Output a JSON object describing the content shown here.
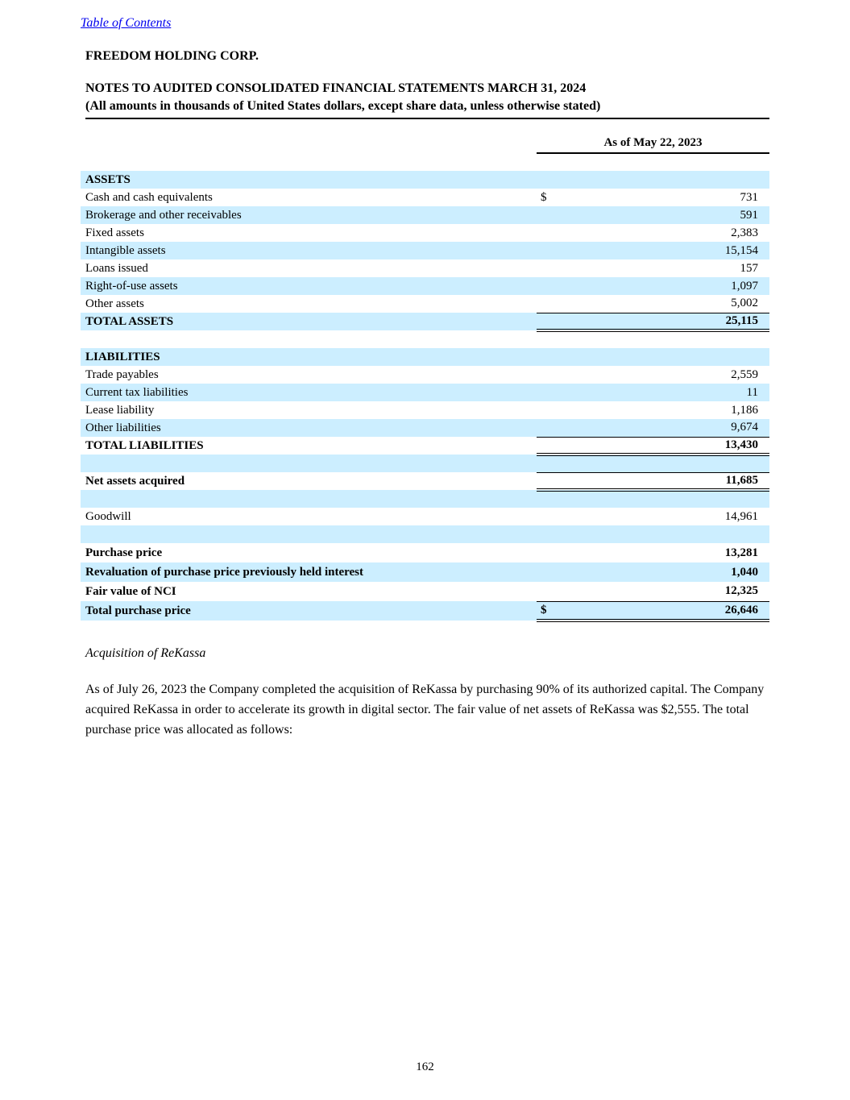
{
  "page": {
    "toc_link": "Table of Contents",
    "company": "FREEDOM HOLDING CORP.",
    "title_line1": "NOTES TO AUDITED CONSOLIDATED FINANCIAL STATEMENTS MARCH 31, 2024",
    "title_line2": "(All amounts in thousands of United States dollars, except share data, unless otherwise stated)",
    "page_number": "162"
  },
  "colors": {
    "row_highlight": "#cceeff",
    "link": "#0000ee",
    "rule": "#000000"
  },
  "table": {
    "column_header": "As of May 22, 2023",
    "rows": [
      {
        "type": "section",
        "label": "ASSETS",
        "bold": true,
        "bg": "blue"
      },
      {
        "type": "data",
        "label": "Cash and cash equivalents",
        "dollar": "$",
        "value": "731",
        "bg": "white"
      },
      {
        "type": "data",
        "label": "Brokerage and other receivables",
        "value": "591",
        "bg": "blue"
      },
      {
        "type": "data",
        "label": "Fixed assets",
        "value": "2,383",
        "bg": "white"
      },
      {
        "type": "data",
        "label": "Intangible assets",
        "value": "15,154",
        "bg": "blue"
      },
      {
        "type": "data",
        "label": "Loans issued",
        "value": "157",
        "bg": "white"
      },
      {
        "type": "data",
        "label": "Right-of-use assets",
        "value": "1,097",
        "bg": "blue"
      },
      {
        "type": "data",
        "label": "Other assets",
        "value": "5,002",
        "bg": "white",
        "borders": "bb1"
      },
      {
        "type": "data",
        "label": "TOTAL ASSETS",
        "value": "25,115",
        "bold": true,
        "bg": "blue",
        "borders": "bb2"
      },
      {
        "type": "spacer",
        "bg": "white"
      },
      {
        "type": "section",
        "label": "LIABILITIES",
        "bold": true,
        "bg": "blue"
      },
      {
        "type": "data",
        "label": "Trade payables",
        "value": "2,559",
        "bg": "white"
      },
      {
        "type": "data",
        "label": "Current tax liabilities",
        "value": "11",
        "bg": "blue"
      },
      {
        "type": "data",
        "label": "Lease liability",
        "value": "1,186",
        "bg": "white"
      },
      {
        "type": "data",
        "label": "Other liabilities",
        "value": "9,674",
        "bg": "blue",
        "borders": "bb1"
      },
      {
        "type": "data",
        "label": "TOTAL LIABILITIES",
        "value": "13,430",
        "bold": true,
        "bg": "white",
        "borders": "bb2"
      },
      {
        "type": "empty",
        "bg": "blue"
      },
      {
        "type": "data",
        "label": "Net assets acquired",
        "value": "11,685",
        "bold": true,
        "bg": "white",
        "borders": "bt1 bb2"
      },
      {
        "type": "empty",
        "bg": "blue"
      },
      {
        "type": "data",
        "label": "Goodwill",
        "value": "14,961",
        "bg": "white"
      },
      {
        "type": "empty",
        "bg": "blue"
      },
      {
        "type": "data",
        "label": "Purchase price",
        "value": "13,281",
        "bold": true,
        "bg": "white",
        "tall": true
      },
      {
        "type": "data",
        "label": "Revaluation of purchase price previously held interest",
        "value": "1,040",
        "bold": true,
        "bg": "blue",
        "tall": true
      },
      {
        "type": "data",
        "label": "Fair value of NCI",
        "value": "12,325",
        "bold": true,
        "bg": "white",
        "tall": true,
        "borders": "bb1"
      },
      {
        "type": "data",
        "label": "Total purchase price",
        "dollar": "$",
        "value": "26,646",
        "bold": true,
        "bg": "blue",
        "tall": true,
        "borders": "bb2"
      }
    ]
  },
  "section": {
    "heading": "Acquisition of ReKassa",
    "paragraph": "As of July 26, 2023 the Company completed the acquisition of ReKassa by purchasing 90% of its authorized capital. The Company acquired ReKassa in order to accelerate its growth in digital sector. The fair value of net assets of ReKassa was $2,555. The total purchase price was allocated as follows:"
  }
}
